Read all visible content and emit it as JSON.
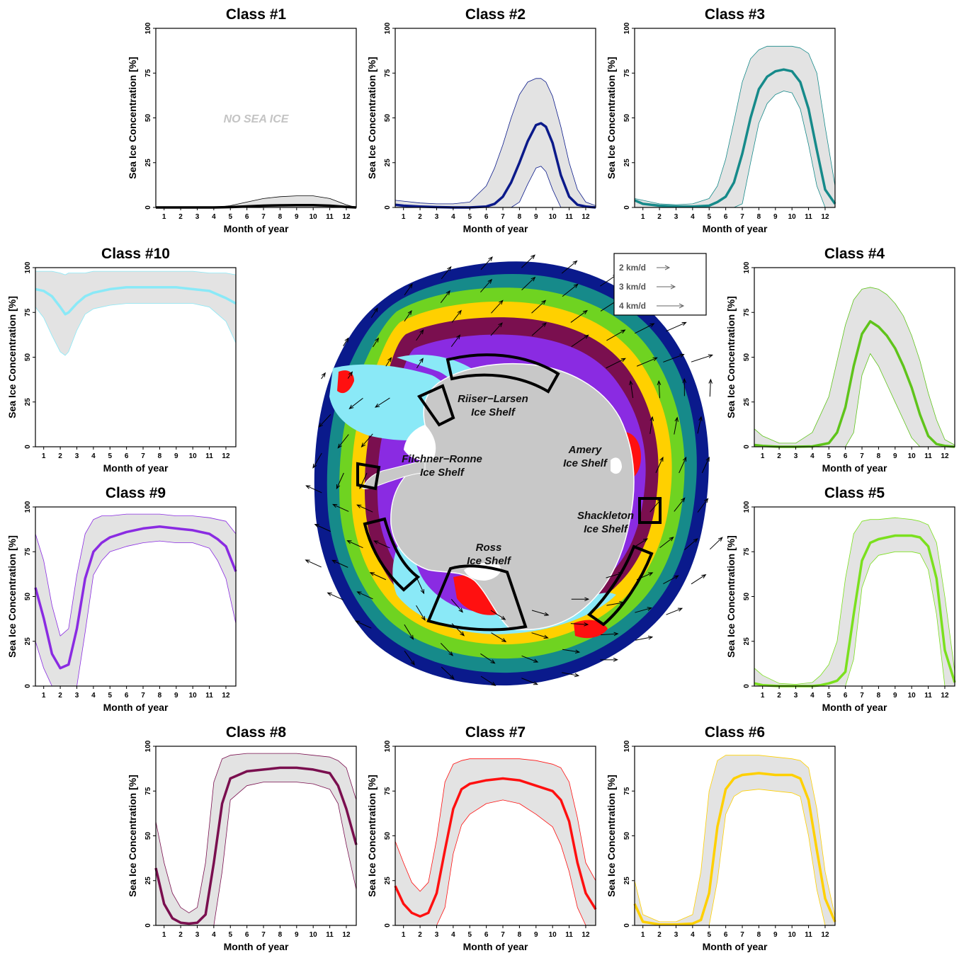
{
  "chart_data": [
    {
      "type": "area",
      "panel": 1,
      "title": "Class #1",
      "xlabel": "Month of year",
      "ylabel": "Sea Ice Concentration [%]",
      "xlim": [
        0.5,
        12.6
      ],
      "ylim": [
        0,
        100
      ],
      "xticks": [
        "1",
        "2",
        "3",
        "4",
        "5",
        "6",
        "7",
        "8",
        "9",
        "10",
        "11",
        "12"
      ],
      "yticks": [
        "0",
        "25",
        "50",
        "75",
        "100"
      ],
      "color": "#000000",
      "annotation": "NO SEA ICE",
      "x": [
        0.5,
        1,
        2,
        3,
        4,
        5,
        6,
        7,
        8,
        9,
        10,
        11,
        12,
        12.6
      ],
      "mean": [
        0,
        0,
        0,
        0,
        0,
        0.2,
        0.6,
        1,
        1.2,
        1.3,
        1.3,
        1,
        0.3,
        0
      ],
      "upper": [
        0,
        0,
        0,
        0,
        0,
        1,
        3,
        5,
        6,
        6.5,
        6.5,
        5,
        1.5,
        0
      ],
      "lower": [
        0,
        0,
        0,
        0,
        0,
        0,
        0,
        0,
        0,
        0,
        0,
        0,
        0,
        0
      ]
    },
    {
      "type": "area",
      "panel": 2,
      "title": "Class #2",
      "xlabel": "Month of year",
      "ylabel": "Sea Ice Concentration [%]",
      "xlim": [
        0.5,
        12.6
      ],
      "ylim": [
        0,
        100
      ],
      "xticks": [
        "1",
        "2",
        "3",
        "4",
        "5",
        "6",
        "7",
        "8",
        "9",
        "10",
        "11",
        "12"
      ],
      "yticks": [
        "0",
        "25",
        "50",
        "75",
        "100"
      ],
      "color": "#0b1a8a",
      "x": [
        0.5,
        1,
        2,
        3,
        4,
        5,
        6,
        6.5,
        7,
        7.5,
        8,
        8.5,
        9,
        9.3,
        9.6,
        10,
        10.5,
        11,
        11.5,
        12,
        12.6
      ],
      "mean": [
        1.5,
        1,
        0.5,
        0.2,
        0,
        0,
        0.5,
        2,
        6,
        14,
        25,
        37,
        46,
        47,
        45,
        36,
        18,
        6,
        1.5,
        0.5,
        0
      ],
      "upper": [
        4,
        3.5,
        2.5,
        2,
        2,
        3,
        12,
        22,
        35,
        50,
        63,
        70,
        72,
        72,
        70,
        62,
        45,
        25,
        10,
        3,
        1
      ],
      "lower": [
        0,
        0,
        0,
        0,
        0,
        0,
        0,
        0,
        0,
        0,
        3,
        13,
        22,
        23,
        20,
        10,
        0,
        0,
        0,
        0,
        0
      ]
    },
    {
      "type": "area",
      "panel": 3,
      "title": "Class #3",
      "xlabel": "Month of year",
      "ylabel": "Sea Ice Concentration [%]",
      "xlim": [
        0.5,
        12.6
      ],
      "ylim": [
        0,
        100
      ],
      "xticks": [
        "1",
        "2",
        "3",
        "4",
        "5",
        "6",
        "7",
        "8",
        "9",
        "10",
        "11",
        "12"
      ],
      "yticks": [
        "0",
        "25",
        "50",
        "75",
        "100"
      ],
      "color": "#168a8a",
      "x": [
        0.5,
        1,
        2,
        3,
        4,
        5,
        5.5,
        6,
        6.5,
        7,
        7.5,
        8,
        8.5,
        9,
        9.5,
        10,
        10.5,
        11,
        11.5,
        12,
        12.6
      ],
      "mean": [
        4,
        2,
        1,
        0.5,
        0.5,
        1,
        3,
        6,
        14,
        30,
        50,
        66,
        73,
        76,
        77,
        76,
        70,
        55,
        32,
        10,
        2
      ],
      "upper": [
        5,
        4,
        2,
        1.5,
        2,
        5,
        12,
        27,
        48,
        70,
        83,
        88,
        90,
        90,
        90,
        90,
        89,
        86,
        75,
        45,
        12
      ],
      "lower": [
        0,
        0,
        0,
        0,
        0,
        0,
        0,
        0,
        0,
        2,
        25,
        47,
        58,
        63,
        65,
        64,
        55,
        35,
        12,
        0,
        0
      ]
    },
    {
      "type": "area",
      "panel": 4,
      "title": "Class #4",
      "xlabel": "Month of year",
      "ylabel": "Sea Ice Concentration [%]",
      "xlim": [
        0.5,
        12.6
      ],
      "ylim": [
        0,
        100
      ],
      "xticks": [
        "1",
        "2",
        "3",
        "4",
        "5",
        "6",
        "7",
        "8",
        "9",
        "10",
        "11",
        "12"
      ],
      "yticks": [
        "0",
        "25",
        "50",
        "75",
        "100"
      ],
      "color": "#5fc41b",
      "x": [
        0.5,
        1,
        2,
        3,
        4,
        5,
        5.5,
        6,
        6.5,
        7,
        7.5,
        8,
        8.5,
        9,
        9.5,
        10,
        10.5,
        11,
        11.5,
        12,
        12.6
      ],
      "mean": [
        1,
        0.5,
        0,
        0,
        0.2,
        2,
        8,
        22,
        45,
        63,
        70,
        67,
        62,
        55,
        45,
        33,
        18,
        6,
        1.5,
        0.5,
        0
      ],
      "upper": [
        10,
        6,
        2,
        2,
        8,
        28,
        48,
        68,
        82,
        88,
        89,
        88,
        85,
        80,
        73,
        62,
        48,
        30,
        15,
        4,
        1
      ],
      "lower": [
        0,
        0,
        0,
        0,
        0,
        0,
        0,
        0,
        8,
        40,
        52,
        45,
        35,
        25,
        15,
        5,
        0,
        0,
        0,
        0,
        0
      ]
    },
    {
      "type": "area",
      "panel": 5,
      "title": "Class #5",
      "xlabel": "Month of year",
      "ylabel": "Sea Ice Concentration [%]",
      "xlim": [
        0.5,
        12.6
      ],
      "ylim": [
        0,
        100
      ],
      "xticks": [
        "1",
        "2",
        "3",
        "4",
        "5",
        "6",
        "7",
        "8",
        "9",
        "10",
        "11",
        "12"
      ],
      "yticks": [
        "0",
        "25",
        "50",
        "75",
        "100"
      ],
      "color": "#7be01e",
      "x": [
        0.5,
        1,
        2,
        3,
        4,
        4.5,
        5,
        5.5,
        6,
        6.5,
        7,
        7.5,
        8,
        9,
        10,
        10.5,
        11,
        11.5,
        12,
        12.6
      ],
      "mean": [
        1.5,
        0.5,
        0,
        0,
        0,
        0.5,
        1.5,
        3,
        8,
        40,
        70,
        80,
        82,
        84,
        84,
        83,
        78,
        60,
        20,
        2
      ],
      "upper": [
        10,
        6,
        1.5,
        1,
        2,
        6,
        12,
        25,
        60,
        85,
        92,
        93,
        93,
        94,
        93,
        92,
        90,
        80,
        50,
        8
      ],
      "lower": [
        0,
        0,
        0,
        0,
        0,
        0,
        0,
        0,
        0,
        15,
        55,
        68,
        73,
        75,
        75,
        74,
        65,
        40,
        0,
        0
      ]
    },
    {
      "type": "area",
      "panel": 6,
      "title": "Class #6",
      "xlabel": "Month of year",
      "ylabel": "Sea Ice Concentration [%]",
      "xlim": [
        0.5,
        12.6
      ],
      "ylim": [
        0,
        100
      ],
      "xticks": [
        "1",
        "2",
        "3",
        "4",
        "5",
        "6",
        "7",
        "8",
        "9",
        "10",
        "11",
        "12"
      ],
      "yticks": [
        "0",
        "25",
        "50",
        "75",
        "100"
      ],
      "color": "#ffd000",
      "x": [
        0.5,
        1,
        2,
        3,
        4,
        4.5,
        5,
        5.5,
        6,
        6.5,
        7,
        8,
        9,
        10,
        10.5,
        11,
        11.5,
        12,
        12.6
      ],
      "mean": [
        12,
        2,
        0.5,
        0.5,
        1,
        3,
        18,
        55,
        76,
        82,
        84,
        85,
        84,
        84,
        82,
        70,
        42,
        15,
        2
      ],
      "upper": [
        25,
        6,
        2,
        2,
        6,
        30,
        75,
        92,
        95,
        95,
        95,
        95,
        94,
        93,
        92,
        88,
        65,
        30,
        5
      ],
      "lower": [
        0,
        0,
        0,
        0,
        0,
        0,
        0,
        25,
        62,
        72,
        75,
        76,
        75,
        74,
        72,
        50,
        20,
        0,
        0
      ]
    },
    {
      "type": "area",
      "panel": 7,
      "title": "Class #7",
      "xlabel": "Month of year",
      "ylabel": "Sea Ice Concentration [%]",
      "xlim": [
        0.5,
        12.6
      ],
      "ylim": [
        0,
        100
      ],
      "xticks": [
        "1",
        "2",
        "3",
        "4",
        "5",
        "6",
        "7",
        "8",
        "9",
        "10",
        "11",
        "12"
      ],
      "yticks": [
        "0",
        "25",
        "50",
        "75",
        "100"
      ],
      "color": "#ff1010",
      "x": [
        0.5,
        1,
        1.5,
        2,
        2.5,
        3,
        3.5,
        4,
        4.5,
        5,
        6,
        7,
        8,
        9,
        10,
        10.5,
        11,
        11.5,
        12,
        12.6
      ],
      "mean": [
        22,
        12,
        7,
        5,
        7,
        18,
        42,
        65,
        76,
        79,
        81,
        82,
        81,
        78,
        75,
        70,
        58,
        35,
        18,
        9
      ],
      "upper": [
        47,
        35,
        24,
        19,
        24,
        48,
        80,
        90,
        92,
        93,
        93,
        93,
        93,
        92,
        90,
        88,
        80,
        60,
        35,
        25
      ],
      "lower": [
        0,
        0,
        0,
        0,
        0,
        0,
        10,
        40,
        56,
        62,
        68,
        70,
        68,
        62,
        55,
        45,
        30,
        10,
        0,
        0
      ]
    },
    {
      "type": "area",
      "panel": 8,
      "title": "Class #8",
      "xlabel": "Month of year",
      "ylabel": "Sea Ice Concentration [%]",
      "xlim": [
        0.5,
        12.6
      ],
      "ylim": [
        0,
        100
      ],
      "xticks": [
        "1",
        "2",
        "3",
        "4",
        "5",
        "6",
        "7",
        "8",
        "9",
        "10",
        "11",
        "12"
      ],
      "yticks": [
        "0",
        "25",
        "50",
        "75",
        "100"
      ],
      "color": "#7a0f4f",
      "x": [
        0.5,
        1,
        1.5,
        2,
        2.5,
        3,
        3.5,
        4,
        4.5,
        5,
        6,
        7,
        8,
        9,
        10,
        11,
        11.5,
        12,
        12.6
      ],
      "mean": [
        32,
        12,
        4,
        1.5,
        1,
        1.5,
        6,
        35,
        68,
        82,
        86,
        87,
        88,
        88,
        87,
        85,
        78,
        65,
        45
      ],
      "upper": [
        58,
        35,
        18,
        10,
        7,
        10,
        35,
        80,
        93,
        95,
        96,
        96,
        96,
        96,
        95,
        94,
        92,
        88,
        70
      ],
      "lower": [
        0,
        0,
        0,
        0,
        0,
        0,
        0,
        0,
        30,
        70,
        78,
        80,
        80,
        80,
        79,
        76,
        68,
        45,
        20
      ]
    },
    {
      "type": "area",
      "panel": 9,
      "title": "Class #9",
      "xlabel": "Month of year",
      "ylabel": "Sea Ice Concentration [%]",
      "xlim": [
        0.5,
        12.6
      ],
      "ylim": [
        0,
        100
      ],
      "xticks": [
        "1",
        "2",
        "3",
        "4",
        "5",
        "6",
        "7",
        "8",
        "9",
        "10",
        "11",
        "12"
      ],
      "yticks": [
        "0",
        "25",
        "50",
        "75",
        "100"
      ],
      "color": "#8a2be2",
      "x": [
        0.5,
        1,
        1.5,
        2,
        2.5,
        3,
        3.5,
        4,
        4.5,
        5,
        6,
        7,
        8,
        9,
        10,
        11,
        11.5,
        12,
        12.6
      ],
      "mean": [
        55,
        38,
        18,
        10,
        12,
        32,
        60,
        75,
        80,
        83,
        86,
        88,
        89,
        88,
        87,
        85,
        82,
        78,
        64
      ],
      "upper": [
        85,
        70,
        45,
        28,
        32,
        62,
        85,
        93,
        95,
        95,
        96,
        96,
        96,
        95,
        95,
        94,
        93,
        92,
        85
      ],
      "lower": [
        25,
        10,
        0,
        0,
        0,
        0,
        30,
        62,
        70,
        75,
        78,
        80,
        81,
        80,
        80,
        77,
        70,
        60,
        35
      ]
    },
    {
      "type": "area",
      "panel": 10,
      "title": "Class #10",
      "xlabel": "Month of year",
      "ylabel": "Sea Ice Concentration [%]",
      "xlim": [
        0.5,
        12.6
      ],
      "ylim": [
        0,
        100
      ],
      "xticks": [
        "1",
        "2",
        "3",
        "4",
        "5",
        "6",
        "7",
        "8",
        "9",
        "10",
        "11",
        "12"
      ],
      "yticks": [
        "0",
        "25",
        "50",
        "75",
        "100"
      ],
      "color": "#8ae9f7",
      "x": [
        0.5,
        1,
        1.5,
        2,
        2.3,
        2.5,
        3,
        3.5,
        4,
        5,
        6,
        7,
        8,
        9,
        10,
        11,
        12,
        12.6
      ],
      "mean": [
        88,
        87,
        84,
        78,
        74,
        75,
        80,
        84,
        86,
        88,
        89,
        89,
        89,
        89,
        88,
        87,
        83,
        80
      ],
      "upper": [
        98,
        98,
        98,
        97,
        96,
        97,
        97,
        97,
        98,
        98,
        98,
        98,
        98,
        98,
        98,
        97,
        97,
        96
      ],
      "lower": [
        78,
        72,
        62,
        53,
        51,
        53,
        65,
        74,
        77,
        79,
        80,
        80,
        80,
        80,
        80,
        78,
        70,
        58
      ]
    }
  ],
  "map": {
    "shelves": [
      {
        "line1": "Riiser−Larsen",
        "line2": "Ice Shelf"
      },
      {
        "line1": "Filchner−Ronne",
        "line2": "Ice Shelf"
      },
      {
        "line1": "Amery",
        "line2": "Ice Shelf"
      },
      {
        "line1": "Shackleton",
        "line2": "Ice Shelf"
      },
      {
        "line1": "Ross",
        "line2": "Ice Shelf"
      }
    ],
    "legend": [
      "2 km/d",
      "3 km/d",
      "4 km/d"
    ],
    "zone_colors": [
      "#0a1a8c",
      "#168a8a",
      "#6fd321",
      "#ffd000",
      "#7a0f4f",
      "#8a2be2",
      "#ff1010",
      "#8ae9f7"
    ],
    "land_color": "#c8c8c8"
  }
}
